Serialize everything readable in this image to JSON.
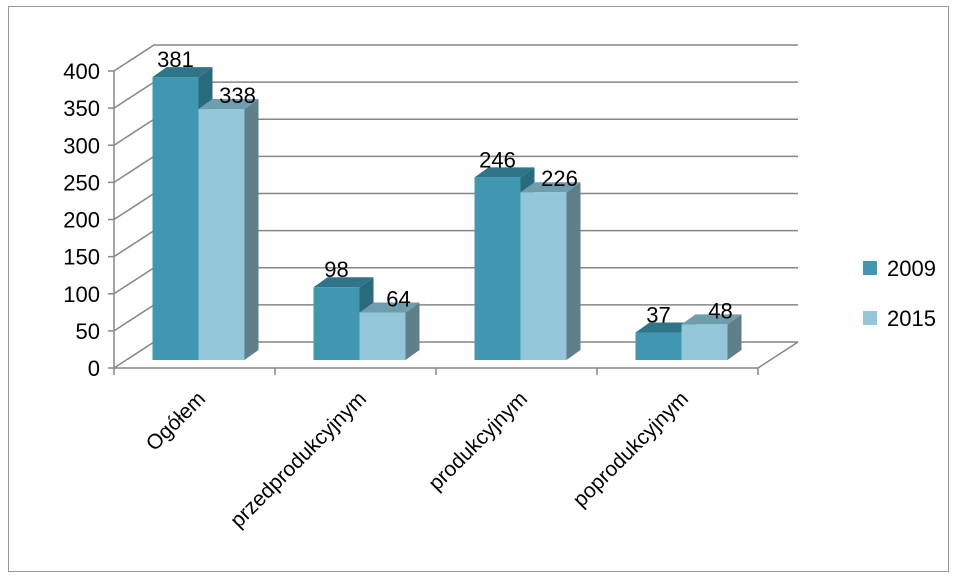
{
  "chart_data": {
    "type": "bar",
    "categories": [
      "Ogółem",
      "przedprodukcyjnym",
      "produkcyjnym",
      "poprodukcyjnym"
    ],
    "series": [
      {
        "name": "2009",
        "values": [
          381,
          98,
          246,
          37
        ],
        "color": "#3f97b0",
        "top_color": "#2f7489",
        "side_color": "#2a6a7e"
      },
      {
        "name": "2015",
        "values": [
          338,
          64,
          226,
          48
        ],
        "color": "#92c6d8",
        "top_color": "#6e9eae",
        "side_color": "#5f7f8b"
      }
    ],
    "ylim": [
      0,
      400
    ],
    "y_ticks": [
      "0",
      "50",
      "100",
      "150",
      "200",
      "250",
      "300",
      "350",
      "400"
    ],
    "grid": true,
    "legend_position": "right",
    "data_labels": true,
    "style": "3d-clustered-column"
  }
}
